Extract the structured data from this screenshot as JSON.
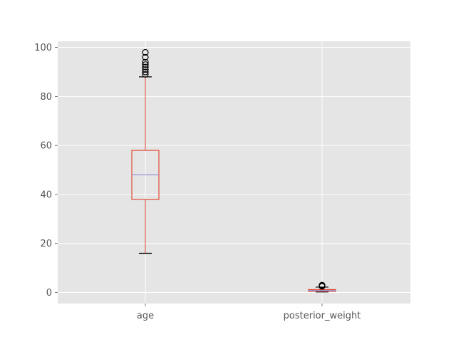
{
  "chart_data": {
    "type": "box",
    "categories": [
      "age",
      "posterior_weight"
    ],
    "ylim": [
      -4.5,
      102.5
    ],
    "yticks": [
      0,
      20,
      40,
      60,
      80,
      100
    ],
    "grid": true,
    "boxes": [
      {
        "name": "age",
        "whisker_low": 16,
        "q1": 38,
        "median": 48,
        "q3": 58,
        "whisker_high": 88,
        "outliers": [
          89,
          90,
          91,
          92,
          93,
          94,
          96,
          98
        ]
      },
      {
        "name": "posterior_weight",
        "whisker_low": 0.2,
        "q1": 0.5,
        "median": 0.8,
        "q3": 1.2,
        "whisker_high": 2.2,
        "outliers": [
          2.5,
          2.8,
          3.0
        ]
      }
    ]
  },
  "colors": {
    "plot_background": "#e5e5e5",
    "grid": "#ffffff",
    "box": "#e24a33",
    "median": "#8b8bd8",
    "caps": "#000000",
    "outlier": "#000000"
  }
}
